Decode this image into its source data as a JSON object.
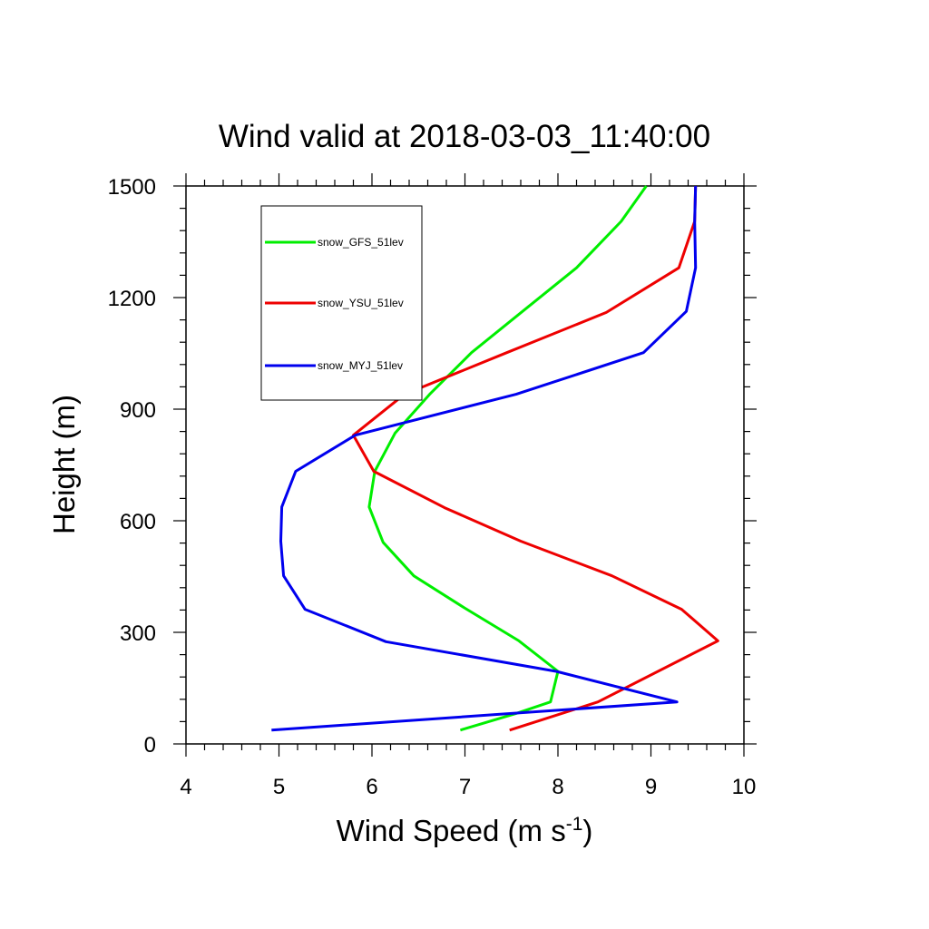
{
  "chart_data": {
    "type": "line",
    "title": "Wind valid at 2018-03-03_11:40:00",
    "xlabel": "Wind Speed (m s",
    "xlabel_superscript": "-1",
    "xlabel_suffix": ")",
    "ylabel": "Height (m)",
    "xlim": [
      4,
      10
    ],
    "ylim": [
      0,
      1500
    ],
    "x_ticks": [
      "4",
      "5",
      "6",
      "7",
      "8",
      "9",
      "10"
    ],
    "y_ticks": [
      "0",
      "300",
      "600",
      "900",
      "1200",
      "1500"
    ],
    "grid": false,
    "legend_position": "top-left",
    "series": [
      {
        "name": "snow_GFS_51lev",
        "color": "#00ee00",
        "points": [
          [
            6.95,
            37
          ],
          [
            7.55,
            82
          ],
          [
            7.92,
            113
          ],
          [
            8.0,
            195
          ],
          [
            7.58,
            277
          ],
          [
            7.0,
            365
          ],
          [
            6.45,
            452
          ],
          [
            6.12,
            542
          ],
          [
            5.97,
            637
          ],
          [
            6.03,
            733
          ],
          [
            6.25,
            836
          ],
          [
            6.62,
            940
          ],
          [
            7.07,
            1052
          ],
          [
            7.62,
            1163
          ],
          [
            8.2,
            1280
          ],
          [
            8.68,
            1405
          ],
          [
            8.95,
            1500
          ]
        ]
      },
      {
        "name": "snow_YSU_51lev",
        "color": "#ee0000",
        "points": [
          [
            7.48,
            37
          ],
          [
            8.43,
            113
          ],
          [
            9.72,
            277
          ],
          [
            9.33,
            362
          ],
          [
            8.58,
            452
          ],
          [
            7.6,
            545
          ],
          [
            6.78,
            635
          ],
          [
            6.02,
            733
          ],
          [
            5.8,
            830
          ],
          [
            6.35,
            940
          ],
          [
            7.45,
            1052
          ],
          [
            8.52,
            1160
          ],
          [
            9.3,
            1280
          ],
          [
            9.47,
            1405
          ],
          [
            9.48,
            1500
          ]
        ]
      },
      {
        "name": "snow_MYJ_51lev",
        "color": "#0000ee",
        "points": [
          [
            4.92,
            37
          ],
          [
            9.28,
            113
          ],
          [
            7.98,
            195
          ],
          [
            6.15,
            275
          ],
          [
            5.28,
            362
          ],
          [
            5.05,
            452
          ],
          [
            5.02,
            545
          ],
          [
            5.03,
            637
          ],
          [
            5.18,
            733
          ],
          [
            5.82,
            830
          ],
          [
            7.55,
            940
          ],
          [
            8.92,
            1052
          ],
          [
            9.38,
            1163
          ],
          [
            9.48,
            1280
          ],
          [
            9.47,
            1405
          ],
          [
            9.48,
            1500
          ]
        ]
      }
    ]
  }
}
